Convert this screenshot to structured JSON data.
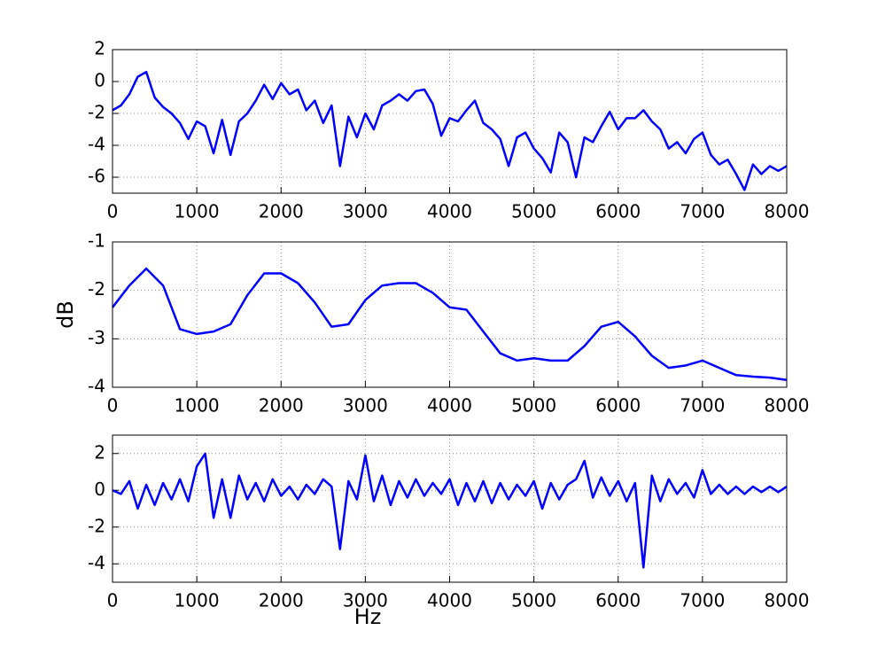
{
  "chart_data": [
    {
      "type": "line",
      "xlim": [
        0,
        8000
      ],
      "ylim": [
        -7,
        2
      ],
      "xticks": [
        0,
        1000,
        2000,
        3000,
        4000,
        5000,
        6000,
        7000,
        8000
      ],
      "yticks": [
        -6,
        -4,
        -2,
        0,
        2
      ],
      "grid": true,
      "series": [
        {
          "color": "#0000ff",
          "x": [
            0,
            100,
            200,
            300,
            400,
            500,
            600,
            700,
            800,
            900,
            1000,
            1100,
            1200,
            1300,
            1400,
            1500,
            1600,
            1700,
            1800,
            1900,
            2000,
            2100,
            2200,
            2300,
            2400,
            2500,
            2600,
            2700,
            2800,
            2900,
            3000,
            3100,
            3200,
            3300,
            3400,
            3500,
            3600,
            3700,
            3800,
            3900,
            4000,
            4100,
            4200,
            4300,
            4400,
            4500,
            4600,
            4700,
            4800,
            4900,
            5000,
            5100,
            5200,
            5300,
            5400,
            5500,
            5600,
            5700,
            5800,
            5900,
            6000,
            6100,
            6200,
            6300,
            6400,
            6500,
            6600,
            6700,
            6800,
            6900,
            7000,
            7100,
            7200,
            7300,
            7400,
            7500,
            7600,
            7700,
            7800,
            7900,
            8000
          ],
          "values": [
            -1.8,
            -1.5,
            -0.8,
            0.3,
            0.6,
            -1,
            -1.6,
            -2,
            -2.6,
            -3.6,
            -2.5,
            -2.8,
            -4.5,
            -2.4,
            -4.6,
            -2.5,
            -2,
            -1.2,
            -0.2,
            -1.1,
            -0.1,
            -0.8,
            -0.5,
            -1.8,
            -1.2,
            -2.6,
            -1.5,
            -5.3,
            -2.2,
            -3.5,
            -2,
            -3,
            -1.5,
            -1.2,
            -0.8,
            -1.2,
            -0.6,
            -0.5,
            -1.4,
            -3.4,
            -2.3,
            -2.5,
            -1.8,
            -1.2,
            -2.6,
            -3,
            -3.6,
            -5.3,
            -3.5,
            -3.2,
            -4.2,
            -4.8,
            -5.7,
            -3.2,
            -3.8,
            -6,
            -3.5,
            -3.8,
            -2.8,
            -1.9,
            -3,
            -2.3,
            -2.3,
            -1.8,
            -2.5,
            -3,
            -4.2,
            -3.8,
            -4.5,
            -3.6,
            -3.2,
            -4.6,
            -5.2,
            -4.9,
            -5.8,
            -6.8,
            -5.2,
            -5.8,
            -5.3,
            -5.6,
            -5.3
          ]
        }
      ]
    },
    {
      "type": "line",
      "ylabel": "dB",
      "xlim": [
        0,
        8000
      ],
      "ylim": [
        -4,
        -1
      ],
      "xticks": [
        0,
        1000,
        2000,
        3000,
        4000,
        5000,
        6000,
        7000,
        8000
      ],
      "yticks": [
        -4,
        -3,
        -2,
        -1
      ],
      "grid": true,
      "series": [
        {
          "color": "#0000ff",
          "x": [
            0,
            200,
            400,
            600,
            800,
            1000,
            1200,
            1400,
            1600,
            1800,
            2000,
            2200,
            2400,
            2600,
            2800,
            3000,
            3200,
            3400,
            3600,
            3800,
            4000,
            4200,
            4400,
            4600,
            4800,
            5000,
            5200,
            5400,
            5600,
            5800,
            6000,
            6200,
            6400,
            6600,
            6800,
            7000,
            7200,
            7400,
            7600,
            7800,
            8000
          ],
          "values": [
            -2.35,
            -1.9,
            -1.55,
            -1.9,
            -2.8,
            -2.9,
            -2.85,
            -2.7,
            -2.1,
            -1.65,
            -1.65,
            -1.85,
            -2.25,
            -2.75,
            -2.7,
            -2.2,
            -1.9,
            -1.85,
            -1.85,
            -2.05,
            -2.35,
            -2.4,
            -2.85,
            -3.3,
            -3.45,
            -3.4,
            -3.45,
            -3.45,
            -3.15,
            -2.75,
            -2.65,
            -2.95,
            -3.35,
            -3.6,
            -3.55,
            -3.45,
            -3.6,
            -3.75,
            -3.78,
            -3.8,
            -3.85
          ]
        }
      ]
    },
    {
      "type": "line",
      "xlabel": "Hz",
      "xlim": [
        0,
        8000
      ],
      "ylim": [
        -5,
        3
      ],
      "xticks": [
        0,
        1000,
        2000,
        3000,
        4000,
        5000,
        6000,
        7000,
        8000
      ],
      "yticks": [
        -4,
        -2,
        0,
        2
      ],
      "grid": true,
      "series": [
        {
          "color": "#0000ff",
          "x": [
            0,
            100,
            200,
            300,
            400,
            500,
            600,
            700,
            800,
            900,
            1000,
            1100,
            1200,
            1300,
            1400,
            1500,
            1600,
            1700,
            1800,
            1900,
            2000,
            2100,
            2200,
            2300,
            2400,
            2500,
            2600,
            2700,
            2800,
            2900,
            3000,
            3100,
            3200,
            3300,
            3400,
            3500,
            3600,
            3700,
            3800,
            3900,
            4000,
            4100,
            4200,
            4300,
            4400,
            4500,
            4600,
            4700,
            4800,
            4900,
            5000,
            5100,
            5200,
            5300,
            5400,
            5500,
            5600,
            5700,
            5800,
            5900,
            6000,
            6100,
            6200,
            6300,
            6400,
            6500,
            6600,
            6700,
            6800,
            6900,
            7000,
            7100,
            7200,
            7300,
            7400,
            7500,
            7600,
            7700,
            7800,
            7900,
            8000
          ],
          "values": [
            0,
            -0.2,
            0.5,
            -1,
            0.3,
            -0.8,
            0.4,
            -0.5,
            0.6,
            -0.6,
            1.3,
            2,
            -1.5,
            0.6,
            -1.5,
            0.8,
            -0.5,
            0.4,
            -0.6,
            0.6,
            -0.3,
            0.2,
            -0.5,
            0.3,
            -0.2,
            0.6,
            0.2,
            -3.2,
            0.5,
            -0.5,
            1.9,
            -0.6,
            0.8,
            -0.8,
            0.5,
            -0.4,
            0.6,
            -0.3,
            0.4,
            -0.2,
            0.6,
            -0.8,
            0.4,
            -0.6,
            0.5,
            -0.7,
            0.4,
            -0.5,
            0.3,
            -0.3,
            0.5,
            -1,
            0.4,
            -0.5,
            0.3,
            0.6,
            1.6,
            -0.4,
            0.7,
            -0.3,
            0.5,
            -0.6,
            0.4,
            -4.2,
            0.8,
            -0.6,
            0.6,
            -0.2,
            0.4,
            -0.4,
            1.1,
            -0.2,
            0.3,
            -0.2,
            0.2,
            -0.2,
            0.2,
            -0.1,
            0.2,
            -0.1,
            0.2
          ]
        }
      ]
    }
  ]
}
